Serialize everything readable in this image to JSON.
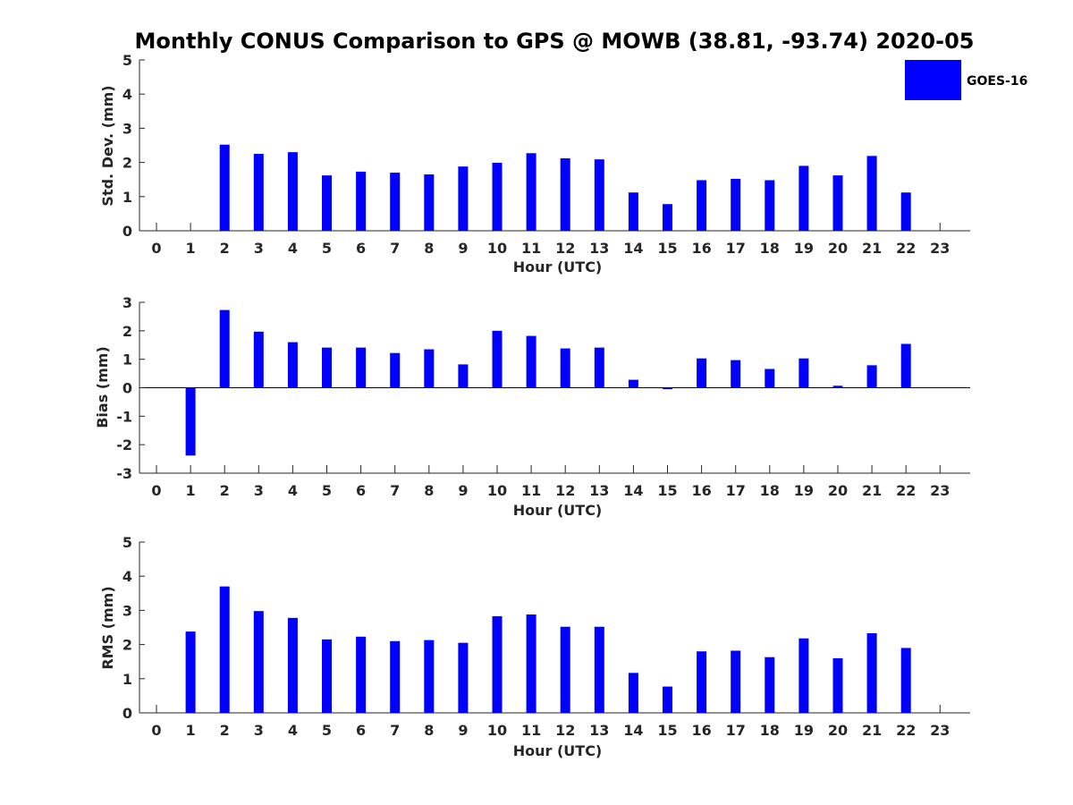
{
  "title": "Monthly CONUS Comparison to GPS @ MOWB (38.81, -93.74) 2020-05",
  "legend": {
    "label": "GOES-16",
    "color": "#0000FF"
  },
  "chart_data": [
    {
      "type": "bar",
      "name": "stddev",
      "ylabel": "Std. Dev. (mm)",
      "xlabel": "Hour (UTC)",
      "categories": [
        0,
        1,
        2,
        3,
        4,
        5,
        6,
        7,
        8,
        9,
        10,
        11,
        12,
        13,
        14,
        15,
        16,
        17,
        18,
        19,
        20,
        21,
        22,
        23
      ],
      "values": [
        null,
        null,
        2.52,
        2.25,
        2.3,
        1.62,
        1.73,
        1.7,
        1.65,
        1.88,
        1.99,
        2.27,
        2.12,
        2.09,
        1.12,
        0.78,
        1.48,
        1.52,
        1.48,
        1.9,
        1.62,
        2.19,
        1.12,
        null
      ],
      "ylim": [
        0,
        5
      ],
      "yticks": [
        0,
        1,
        2,
        3,
        4,
        5
      ]
    },
    {
      "type": "bar",
      "name": "bias",
      "ylabel": "Bias (mm)",
      "xlabel": "Hour (UTC)",
      "categories": [
        0,
        1,
        2,
        3,
        4,
        5,
        6,
        7,
        8,
        9,
        10,
        11,
        12,
        13,
        14,
        15,
        16,
        17,
        18,
        19,
        20,
        21,
        22,
        23
      ],
      "values": [
        null,
        -2.38,
        2.73,
        1.97,
        1.6,
        1.41,
        1.41,
        1.22,
        1.35,
        0.82,
        2.0,
        1.82,
        1.38,
        1.41,
        0.28,
        -0.05,
        1.03,
        0.97,
        0.66,
        1.03,
        0.07,
        0.79,
        1.54,
        null
      ],
      "ylim": [
        -3,
        3
      ],
      "yticks": [
        -3,
        -2,
        -1,
        0,
        1,
        2,
        3
      ]
    },
    {
      "type": "bar",
      "name": "rms",
      "ylabel": "RMS (mm)",
      "xlabel": "Hour (UTC)",
      "categories": [
        0,
        1,
        2,
        3,
        4,
        5,
        6,
        7,
        8,
        9,
        10,
        11,
        12,
        13,
        14,
        15,
        16,
        17,
        18,
        19,
        20,
        21,
        22,
        23
      ],
      "values": [
        null,
        2.38,
        3.7,
        2.98,
        2.78,
        2.15,
        2.23,
        2.1,
        2.13,
        2.05,
        2.83,
        2.88,
        2.52,
        2.52,
        1.17,
        0.77,
        1.8,
        1.82,
        1.63,
        2.18,
        1.6,
        2.33,
        1.9,
        null
      ],
      "ylim": [
        0,
        5
      ],
      "yticks": [
        0,
        1,
        2,
        3,
        4,
        5
      ]
    }
  ]
}
